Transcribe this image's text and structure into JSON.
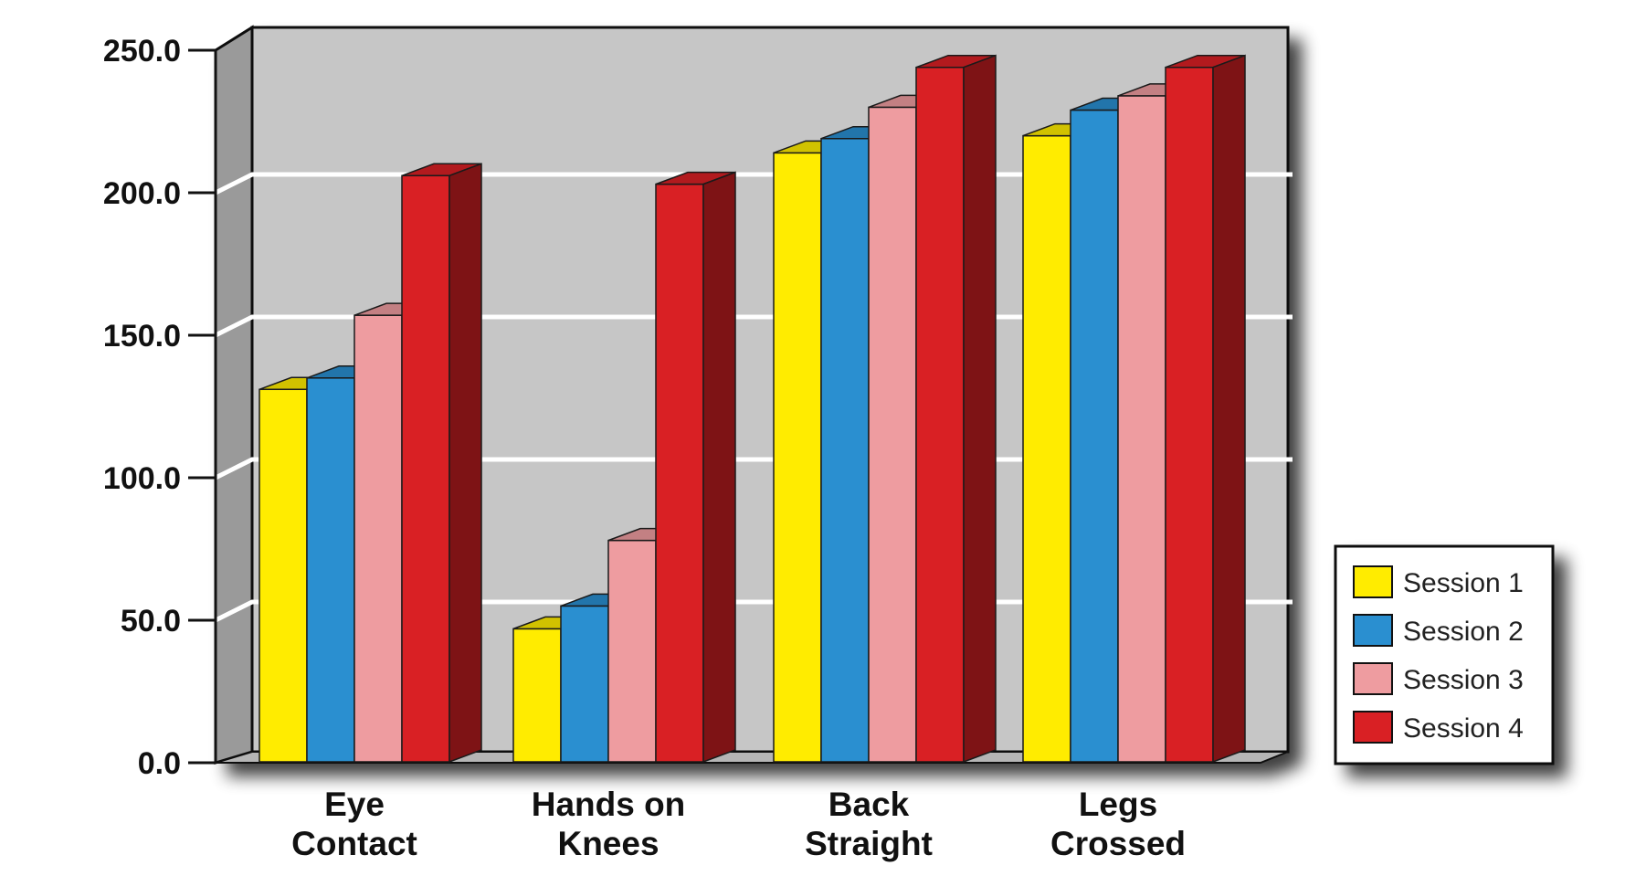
{
  "chart_data": {
    "type": "bar",
    "categories": [
      [
        "Eye",
        "Contact"
      ],
      [
        "Hands on",
        "Knees"
      ],
      [
        "Back",
        "Straight"
      ],
      [
        "Legs",
        "Crossed"
      ]
    ],
    "series": [
      {
        "name": "Session 1",
        "color": "#FFEC00",
        "values": [
          131,
          47,
          214,
          220
        ]
      },
      {
        "name": "Session 2",
        "color": "#2A8FD0",
        "values": [
          135,
          55,
          219,
          229
        ]
      },
      {
        "name": "Session 3",
        "color": "#EE9CA0",
        "values": [
          157,
          78,
          230,
          234
        ]
      },
      {
        "name": "Session 4",
        "color": "#D92024",
        "values": [
          206,
          203,
          244,
          244
        ]
      }
    ],
    "ylim": [
      0,
      250
    ],
    "yticks": [
      "0.0",
      "50.0",
      "100.0",
      "150.0",
      "200.0",
      "250.0"
    ],
    "grid": true,
    "legend_position": "bottom-right",
    "colors": {
      "wall": "#C6C6C6",
      "side_wall": "#9A9A9A",
      "floor": "#B5B5B5",
      "gridline": "#FFFFFF"
    }
  }
}
